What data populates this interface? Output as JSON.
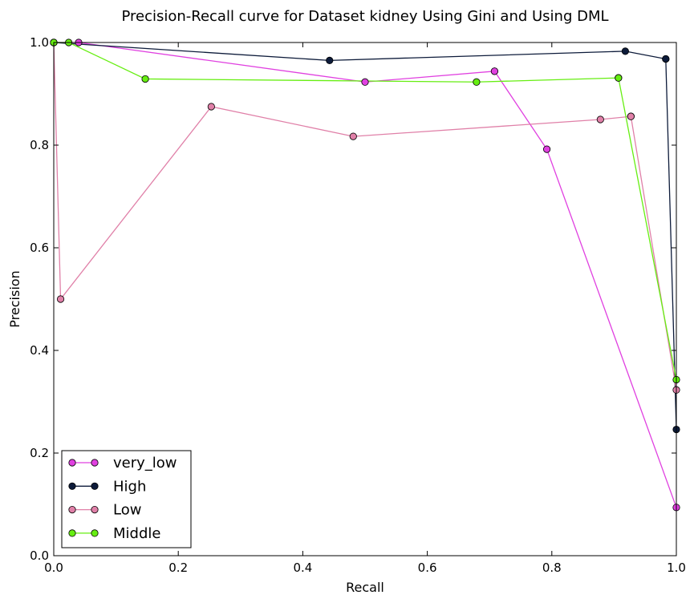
{
  "chart_data": {
    "type": "line",
    "title": "Precision-Recall curve for Dataset kidney Using Gini and Using DML",
    "xlabel": "Recall",
    "ylabel": "Precision",
    "xlim": [
      0.0,
      1.0
    ],
    "ylim": [
      0.0,
      1.0
    ],
    "xticks": [
      "0.0",
      "0.2",
      "0.4",
      "0.6",
      "0.8",
      "1.0"
    ],
    "yticks": [
      "0.0",
      "0.2",
      "0.4",
      "0.6",
      "0.8",
      "1.0"
    ],
    "grid": false,
    "legend_position": "lower-left",
    "series": [
      {
        "name": "very_low",
        "color": "#e040e0",
        "x": [
          0.0,
          0.04,
          0.5,
          0.708,
          0.708,
          0.792,
          1.0
        ],
        "y": [
          1.0,
          1.0,
          0.923,
          0.944,
          0.944,
          0.792,
          0.094
        ]
      },
      {
        "name": "High",
        "color": "#0d1b3a",
        "x": [
          0.0,
          0.443,
          0.918,
          0.983,
          0.983,
          1.0
        ],
        "y": [
          1.0,
          0.965,
          0.983,
          0.968,
          0.968,
          0.246
        ]
      },
      {
        "name": "Low",
        "color": "#e080a8",
        "x": [
          0.0,
          0.011,
          0.253,
          0.481,
          0.878,
          0.927,
          0.927,
          1.0
        ],
        "y": [
          1.0,
          0.5,
          0.875,
          0.817,
          0.85,
          0.856,
          0.856,
          0.323
        ]
      },
      {
        "name": "Middle",
        "color": "#66ee11",
        "x": [
          0.0,
          0.024,
          0.147,
          0.679,
          0.907,
          0.907,
          1.0
        ],
        "y": [
          1.0,
          1.0,
          0.929,
          0.923,
          0.931,
          0.931,
          0.343
        ]
      }
    ]
  }
}
